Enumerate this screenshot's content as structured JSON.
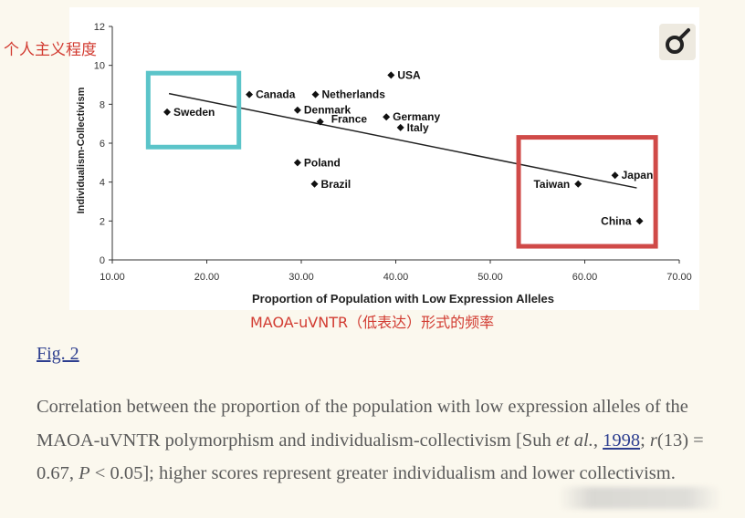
{
  "chart_data": {
    "type": "scatter",
    "xlabel": "Proportion of Population with Low Expression Alleles",
    "ylabel": "Individualism-Collectivism",
    "xlim": [
      10,
      70
    ],
    "ylim": [
      0,
      12
    ],
    "x_ticks": [
      "10.00",
      "20.00",
      "30.00",
      "40.00",
      "50.00",
      "60.00",
      "70.00"
    ],
    "y_ticks": [
      "0",
      "2",
      "4",
      "6",
      "8",
      "10",
      "12"
    ],
    "grid": false,
    "points": [
      {
        "label": "USA",
        "x": 39.5,
        "y": 9.5
      },
      {
        "label": "Canada",
        "x": 24.5,
        "y": 8.5
      },
      {
        "label": "Netherlands",
        "x": 31.5,
        "y": 8.5
      },
      {
        "label": "Sweden",
        "x": 15.8,
        "y": 7.6
      },
      {
        "label": "Denmark",
        "x": 29.6,
        "y": 7.7
      },
      {
        "label": "France",
        "x": 32.0,
        "y": 7.1
      },
      {
        "label": "Germany",
        "x": 39.0,
        "y": 7.35
      },
      {
        "label": "Italy",
        "x": 40.5,
        "y": 6.8
      },
      {
        "label": "Poland",
        "x": 29.6,
        "y": 5.0
      },
      {
        "label": "Brazil",
        "x": 31.4,
        "y": 3.9
      },
      {
        "label": "Taiwan",
        "x": 59.3,
        "y": 3.9
      },
      {
        "label": "Japan",
        "x": 63.2,
        "y": 4.35
      },
      {
        "label": "China",
        "x": 65.8,
        "y": 2.0
      }
    ],
    "trendline": {
      "x": [
        16,
        65.5
      ],
      "y": [
        8.55,
        3.7
      ]
    },
    "highlight_colors": {
      "sweden_box": "#5bc4c9",
      "east_asia_box": "#d04a48"
    }
  },
  "annotations": {
    "y_cn": "个人主义程度",
    "x_cn": "MAOA-uVNTR（低表达）形式的频率",
    "color": "#d23c32"
  },
  "figure": {
    "link_label": "Fig. 2",
    "caption_part1": "Correlation between the proportion of the population with low expression alleles of the MAOA-uVNTR polymorphism and individualism-collectivism [Suh ",
    "caption_etal": "et al.",
    "caption_comma": ", ",
    "caption_year": "1998",
    "caption_part2": "; ",
    "caption_r": "r",
    "caption_part3": "(13) = 0.67, ",
    "caption_p": "P",
    "caption_part4": " < 0.05]; higher scores represent greater individualism and lower collectivism."
  },
  "logo": {
    "icon": "publisher-logo-icon"
  }
}
